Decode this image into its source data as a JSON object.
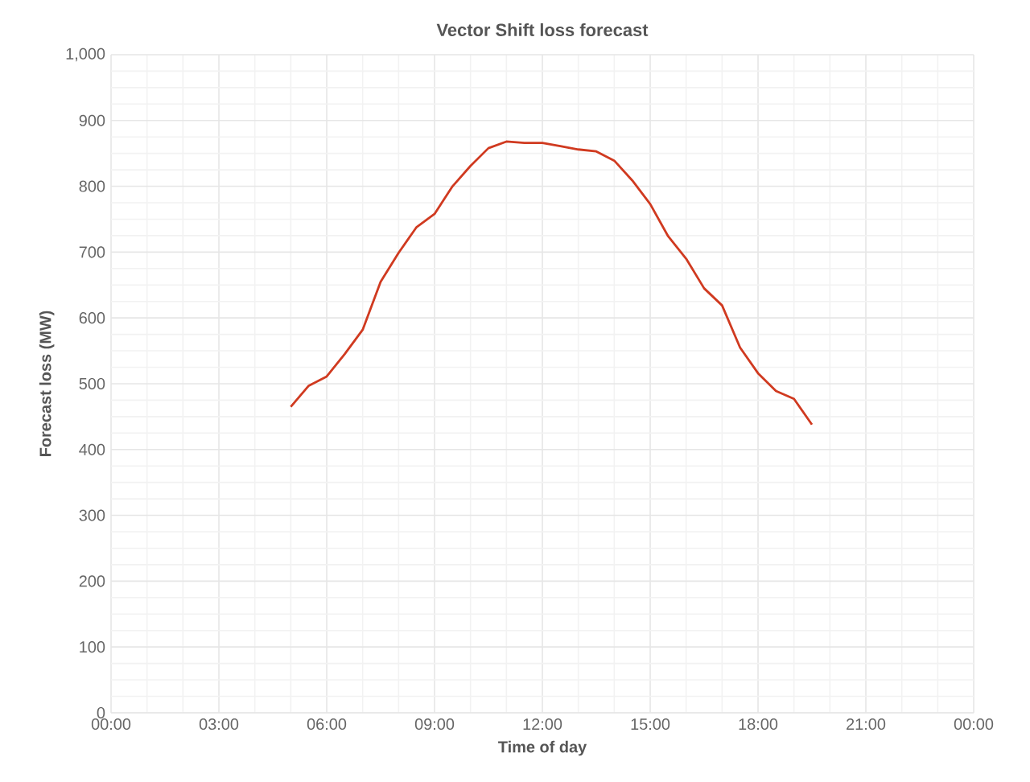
{
  "chart_data": {
    "type": "line",
    "title": "Vector Shift loss forecast",
    "xlabel": "Time of day",
    "ylabel": "Forecast loss (MW)",
    "x": [
      5,
      5.5,
      6,
      6.5,
      7,
      7.5,
      8,
      8.5,
      9,
      9.5,
      10,
      10.5,
      11,
      11.5,
      12,
      12.5,
      13,
      13.5,
      14,
      14.5,
      15,
      15.5,
      16,
      16.5,
      17,
      17.5,
      18,
      18.5,
      19,
      19.5
    ],
    "values": [
      465,
      497,
      511,
      545,
      582,
      655,
      699,
      738,
      758,
      800,
      831,
      858,
      868,
      866,
      866,
      861,
      856,
      853,
      839,
      809,
      773,
      724,
      690,
      645,
      619,
      555,
      516,
      489,
      477,
      438
    ],
    "color": "#d03a20",
    "xlim": [
      0,
      24
    ],
    "xticks": [
      {
        "value": 0,
        "label": "00:00"
      },
      {
        "value": 3,
        "label": "03:00"
      },
      {
        "value": 6,
        "label": "06:00"
      },
      {
        "value": 9,
        "label": "09:00"
      },
      {
        "value": 12,
        "label": "12:00"
      },
      {
        "value": 15,
        "label": "15:00"
      },
      {
        "value": 18,
        "label": "18:00"
      },
      {
        "value": 21,
        "label": "21:00"
      },
      {
        "value": 24,
        "label": "00:00"
      }
    ],
    "ylim": [
      0,
      1000
    ],
    "yticks": [
      0,
      100,
      200,
      300,
      400,
      500,
      600,
      700,
      800,
      900,
      {
        "value": 1000,
        "label": "1,000"
      }
    ],
    "grid": true,
    "marker": "none",
    "line_style": "solid"
  }
}
